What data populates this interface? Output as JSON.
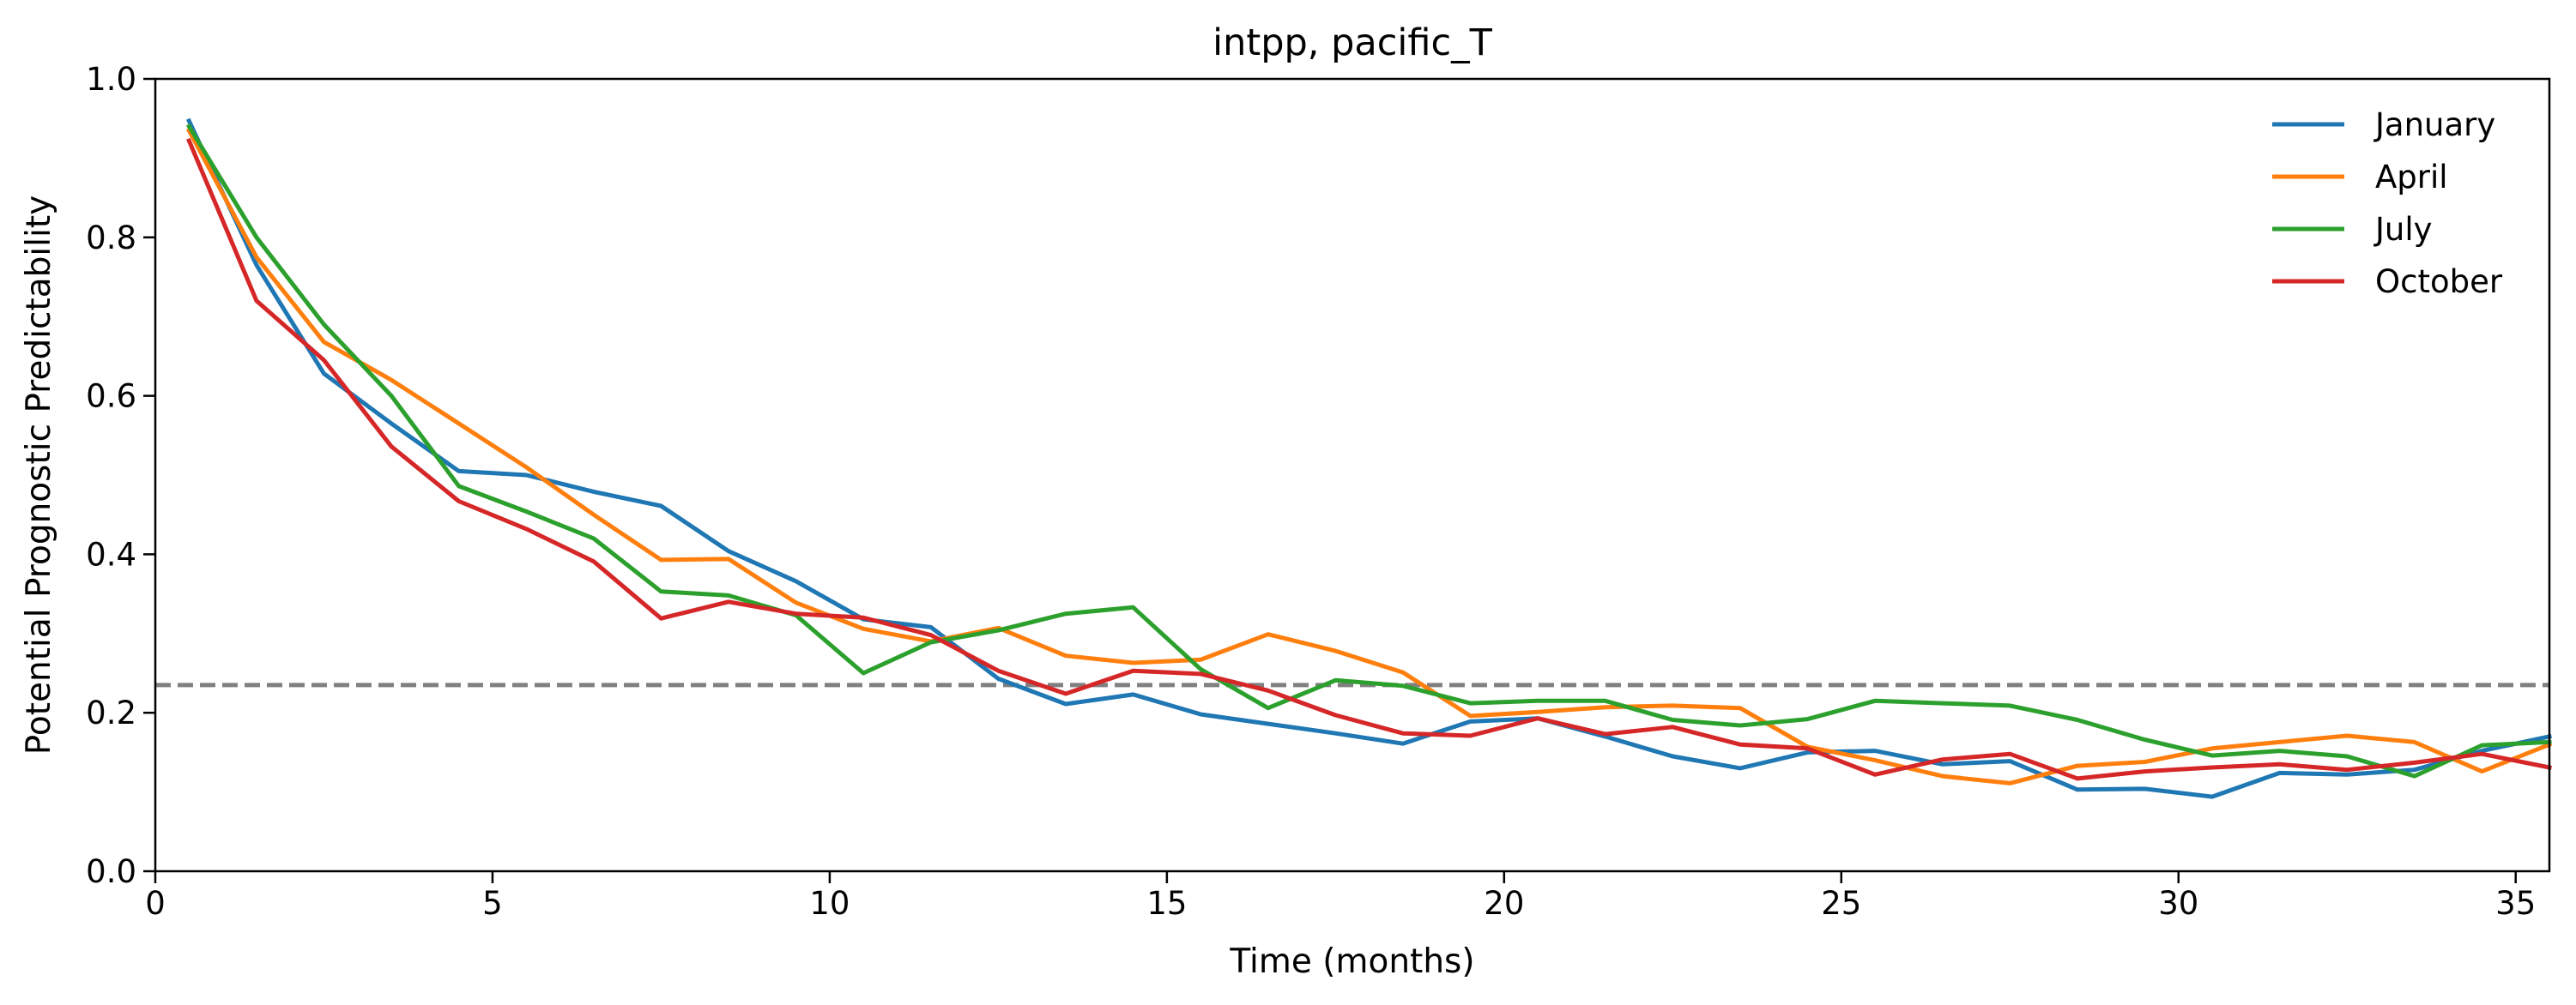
{
  "chart_data": {
    "type": "line",
    "title": "intpp, pacific_T",
    "xlabel": "Time (months)",
    "ylabel": "Potential Prognostic Predictability",
    "xlim": [
      0,
      35.5
    ],
    "ylim": [
      0,
      1.0
    ],
    "xticks": [
      0,
      5,
      10,
      15,
      20,
      25,
      30,
      35
    ],
    "yticks": [
      0.0,
      0.2,
      0.4,
      0.6,
      0.8,
      1.0
    ],
    "xtick_labels": [
      "0",
      "5",
      "10",
      "15",
      "20",
      "25",
      "30",
      "35"
    ],
    "ytick_labels": [
      "0.0",
      "0.2",
      "0.4",
      "0.6",
      "0.8",
      "1.0"
    ],
    "legend_position": "top-right",
    "grid": false,
    "threshold": {
      "value": 0.235,
      "color": "#808080",
      "style": "dashed"
    },
    "x": [
      0.5,
      1.5,
      2.5,
      3.5,
      4.5,
      5.5,
      6.5,
      7.5,
      8.5,
      9.5,
      10.5,
      11.5,
      12.5,
      13.5,
      14.5,
      15.5,
      16.5,
      17.5,
      18.5,
      19.5,
      20.5,
      21.5,
      22.5,
      23.5,
      24.5,
      25.5,
      26.5,
      27.5,
      28.5,
      29.5,
      30.5,
      31.5,
      32.5,
      33.5,
      34.5,
      35.5
    ],
    "series": [
      {
        "name": "January",
        "color": "#1f77b4",
        "values": [
          0.947,
          0.765,
          0.628,
          0.565,
          0.505,
          0.5,
          0.479,
          0.461,
          0.404,
          0.366,
          0.318,
          0.308,
          0.243,
          0.211,
          0.223,
          0.198,
          0.186,
          0.174,
          0.161,
          0.189,
          0.193,
          0.17,
          0.145,
          0.13,
          0.15,
          0.152,
          0.135,
          0.139,
          0.103,
          0.104,
          0.094,
          0.124,
          0.122,
          0.128,
          0.152,
          0.17
        ]
      },
      {
        "name": "April",
        "color": "#ff7f0e",
        "values": [
          0.935,
          0.775,
          0.668,
          0.62,
          0.565,
          0.51,
          0.45,
          0.393,
          0.394,
          0.339,
          0.306,
          0.29,
          0.307,
          0.272,
          0.263,
          0.267,
          0.299,
          0.278,
          0.251,
          0.196,
          0.201,
          0.207,
          0.209,
          0.206,
          0.157,
          0.14,
          0.12,
          0.111,
          0.133,
          0.138,
          0.155,
          0.163,
          0.171,
          0.163,
          0.126,
          0.16
        ]
      },
      {
        "name": "July",
        "color": "#2ca02c",
        "values": [
          0.94,
          0.8,
          0.69,
          0.6,
          0.486,
          0.454,
          0.42,
          0.353,
          0.348,
          0.323,
          0.25,
          0.289,
          0.304,
          0.325,
          0.333,
          0.255,
          0.206,
          0.241,
          0.234,
          0.212,
          0.215,
          0.215,
          0.191,
          0.184,
          0.192,
          0.215,
          0.212,
          0.209,
          0.191,
          0.166,
          0.146,
          0.152,
          0.145,
          0.12,
          0.159,
          0.163
        ]
      },
      {
        "name": "October",
        "color": "#d62728",
        "values": [
          0.922,
          0.72,
          0.645,
          0.536,
          0.467,
          0.432,
          0.391,
          0.319,
          0.34,
          0.325,
          0.32,
          0.298,
          0.253,
          0.224,
          0.253,
          0.249,
          0.228,
          0.197,
          0.174,
          0.171,
          0.193,
          0.173,
          0.182,
          0.16,
          0.155,
          0.122,
          0.141,
          0.148,
          0.117,
          0.126,
          0.131,
          0.135,
          0.128,
          0.137,
          0.148,
          0.131
        ]
      }
    ]
  }
}
